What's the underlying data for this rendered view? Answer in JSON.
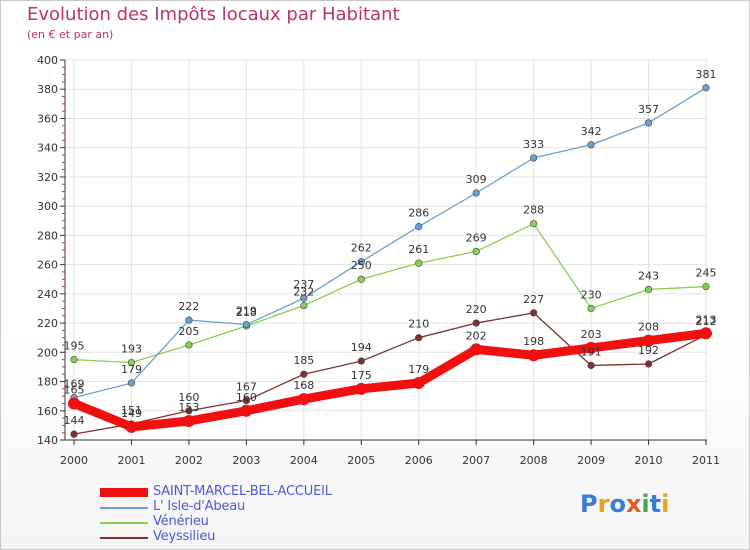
{
  "header": {
    "title": "Evolution des Impôts locaux par Habitant",
    "subtitle": "(en € et par an)"
  },
  "logo": {
    "text": "Proxiti",
    "colors": [
      "#3a7bd5",
      "#e8a020",
      "#3a7bd5",
      "#e05a20",
      "#4aa84a",
      "#3a7bd5",
      "#e8a020"
    ]
  },
  "chart_data": {
    "type": "line",
    "x": [
      "2000",
      "2001",
      "2002",
      "2003",
      "2004",
      "2005",
      "2006",
      "2007",
      "2008",
      "2009",
      "2010",
      "2011"
    ],
    "ylim": [
      140,
      400
    ],
    "yticks": [
      "140",
      "160",
      "180",
      "200",
      "220",
      "240",
      "260",
      "280",
      "300",
      "320",
      "340",
      "360",
      "380",
      "400"
    ],
    "grid": true,
    "legend": "bottom-left",
    "series": [
      {
        "name": "SAINT-MARCEL-BEL-ACCUEIL",
        "color": "#f01010",
        "values": [
          165,
          149,
          153,
          160,
          168,
          175,
          179,
          202,
          198,
          203,
          208,
          213
        ]
      },
      {
        "name": "L' Isle-d'Abeau",
        "color": "#6aa0d0",
        "values": [
          169,
          179,
          222,
          219,
          237,
          262,
          286,
          309,
          333,
          342,
          357,
          381
        ]
      },
      {
        "name": "Vénérieu",
        "color": "#88d050",
        "values": [
          195,
          193,
          205,
          218,
          232,
          250,
          261,
          269,
          288,
          230,
          243,
          245
        ]
      },
      {
        "name": "Veyssilieu",
        "color": "#803030",
        "values": [
          144,
          151,
          160,
          167,
          185,
          194,
          210,
          220,
          227,
          191,
          192,
          212
        ]
      }
    ]
  }
}
